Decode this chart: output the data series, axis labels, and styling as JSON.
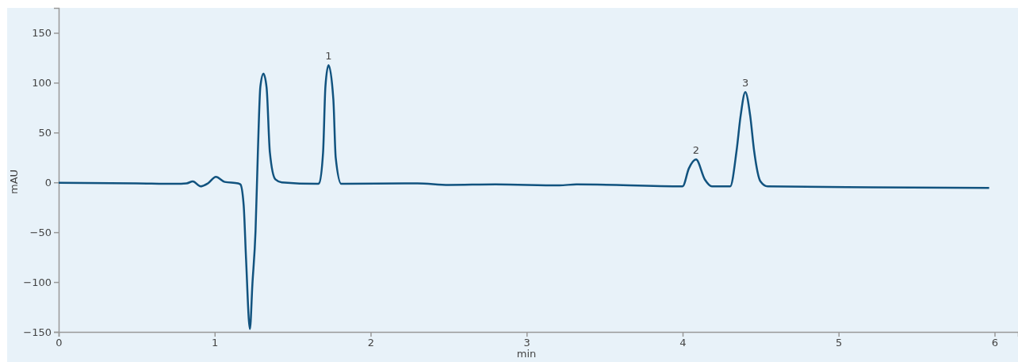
{
  "chart_data": {
    "type": "line",
    "xlabel": "min",
    "ylabel": "mAU",
    "xlim": [
      0,
      6.15
    ],
    "ylim": [
      -150,
      175
    ],
    "xticks": [
      0,
      1,
      2,
      3,
      4,
      5,
      6
    ],
    "yticks": [
      {
        "value": -150,
        "label": "−150"
      },
      {
        "value": -100,
        "label": "−100"
      },
      {
        "value": -50,
        "label": "−50"
      },
      0,
      50,
      100,
      150
    ],
    "marker": "none",
    "line_style": "solid",
    "series": [
      {
        "color": "#11537f",
        "x": [
          0,
          0.5,
          0.75,
          0.82,
          0.86,
          0.91,
          0.957,
          1.008,
          1.064,
          1.15,
          1.165,
          1.186,
          1.201,
          1.226,
          1.242,
          1.262,
          1.277,
          1.293,
          1.313,
          1.333,
          1.354,
          1.389,
          1.43,
          1.66,
          1.669,
          1.695,
          1.71,
          1.73,
          1.761,
          1.776,
          1.812,
          2.3,
          2.5,
          2.8,
          3.21,
          3.32,
          4.0,
          4.04,
          4.086,
          4.142,
          4.188,
          4.305,
          4.346,
          4.372,
          4.402,
          4.433,
          4.458,
          4.499,
          4.545,
          5.22,
          5.965
        ],
        "values": [
          -0.5,
          -1,
          -1.5,
          -1,
          1,
          -4,
          -1,
          5.5,
          0.5,
          -1,
          -2,
          -23,
          -76,
          -147,
          -102,
          -49,
          30,
          96,
          109,
          95,
          30,
          3,
          0,
          -1.5,
          -1,
          30,
          96,
          117.5,
          83,
          25,
          -1.5,
          -1,
          -2.5,
          -2,
          -3,
          -2,
          -4,
          14,
          23,
          3,
          -4,
          -4,
          32,
          67,
          90.5,
          67,
          32,
          1,
          -4,
          -5,
          -5.6
        ]
      }
    ],
    "annotations": [
      {
        "text": "1",
        "x": 1.73,
        "y": 117.5
      },
      {
        "text": "2",
        "x": 4.086,
        "y": 23
      },
      {
        "text": "3",
        "x": 4.402,
        "y": 90.5
      }
    ]
  }
}
